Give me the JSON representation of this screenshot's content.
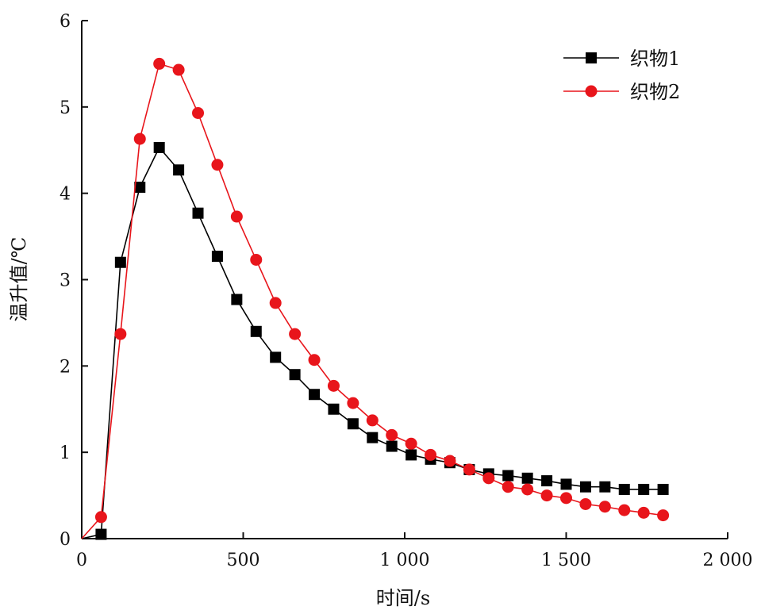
{
  "chart_data": {
    "type": "line",
    "xlabel": "时间/s",
    "ylabel": "温升值/℃",
    "xlim": [
      0,
      2000
    ],
    "ylim": [
      0,
      6
    ],
    "x_ticks": [
      0,
      500,
      1000,
      1500,
      2000
    ],
    "x_tick_labels": [
      "0",
      "500",
      "1 000",
      "1 500",
      "2 000"
    ],
    "y_ticks": [
      0,
      1,
      2,
      3,
      4,
      5,
      6
    ],
    "y_tick_labels": [
      "0",
      "1",
      "2",
      "3",
      "4",
      "5",
      "6"
    ],
    "grid": false,
    "legend_position": "top-right",
    "x": [
      0,
      60,
      120,
      180,
      240,
      300,
      360,
      420,
      480,
      540,
      600,
      660,
      720,
      780,
      840,
      900,
      960,
      1020,
      1080,
      1140,
      1200,
      1260,
      1320,
      1380,
      1440,
      1500,
      1560,
      1620,
      1680,
      1740,
      1800
    ],
    "series": [
      {
        "name": "织物1",
        "marker": "square",
        "color": "#000000",
        "values": [
          0,
          0.05,
          3.2,
          4.07,
          4.53,
          4.27,
          3.77,
          3.27,
          2.77,
          2.4,
          2.1,
          1.9,
          1.67,
          1.5,
          1.33,
          1.17,
          1.07,
          0.97,
          0.92,
          0.88,
          0.8,
          0.75,
          0.73,
          0.7,
          0.67,
          0.63,
          0.6,
          0.6,
          0.57,
          0.57,
          0.57
        ]
      },
      {
        "name": "织物2",
        "marker": "circle",
        "color": "#e8151b",
        "values": [
          0,
          0.25,
          2.37,
          4.63,
          5.5,
          5.43,
          4.93,
          4.33,
          3.73,
          3.23,
          2.73,
          2.37,
          2.07,
          1.77,
          1.57,
          1.37,
          1.2,
          1.1,
          0.97,
          0.9,
          0.8,
          0.7,
          0.6,
          0.57,
          0.5,
          0.47,
          0.4,
          0.37,
          0.33,
          0.3,
          0.27
        ]
      }
    ]
  }
}
